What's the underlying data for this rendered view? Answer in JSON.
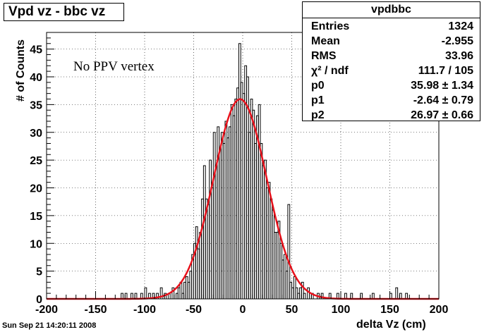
{
  "title": "Vpd vz - bbc vz",
  "annotation": "No PPV vertex",
  "timestamp": "Sun Sep 21 14:20:11 2008",
  "stats": {
    "name": "vpdbbc",
    "rows": [
      {
        "label": "Entries",
        "value": "1324"
      },
      {
        "label": "Mean",
        "value": "-2.955"
      },
      {
        "label": "RMS",
        "value": "33.96"
      },
      {
        "label": "χ² / ndf",
        "value": "111.7 / 105"
      },
      {
        "label": "p0",
        "value": "35.98 ± 1.34"
      },
      {
        "label": "p1",
        "value": "-2.64 ± 0.79"
      },
      {
        "label": "p2",
        "value": "26.97 ± 0.66"
      }
    ]
  },
  "colors": {
    "histogram": "#000000",
    "fit": "#e8121c",
    "grid": "#000000"
  },
  "chart_data": {
    "type": "bar",
    "xlabel": "delta Vz (cm)",
    "ylabel": "# of Counts",
    "xlim": [
      -200,
      200
    ],
    "ylim": [
      0,
      48
    ],
    "xticks": [
      -200,
      -150,
      -100,
      -50,
      0,
      50,
      100,
      150,
      200
    ],
    "yticks": [
      0,
      5,
      10,
      15,
      20,
      25,
      30,
      35,
      40,
      45
    ],
    "grid": true,
    "bin_width": 2,
    "bins": [
      [
        -124,
        1
      ],
      [
        -120,
        1
      ],
      [
        -114,
        1
      ],
      [
        -110,
        1
      ],
      [
        -104,
        1
      ],
      [
        -100,
        2
      ],
      [
        -96,
        1
      ],
      [
        -92,
        1
      ],
      [
        -88,
        1
      ],
      [
        -84,
        2
      ],
      [
        -80,
        1
      ],
      [
        -76,
        1
      ],
      [
        -72,
        2
      ],
      [
        -68,
        1
      ],
      [
        -66,
        2
      ],
      [
        -64,
        3
      ],
      [
        -62,
        1
      ],
      [
        -60,
        3
      ],
      [
        -58,
        4
      ],
      [
        -56,
        3
      ],
      [
        -54,
        5
      ],
      [
        -52,
        8
      ],
      [
        -50,
        10
      ],
      [
        -48,
        13
      ],
      [
        -46,
        9
      ],
      [
        -44,
        12
      ],
      [
        -42,
        18
      ],
      [
        -40,
        24
      ],
      [
        -38,
        18
      ],
      [
        -36,
        17
      ],
      [
        -34,
        25
      ],
      [
        -32,
        20
      ],
      [
        -30,
        30
      ],
      [
        -28,
        24
      ],
      [
        -26,
        31
      ],
      [
        -24,
        27
      ],
      [
        -22,
        30
      ],
      [
        -20,
        28
      ],
      [
        -18,
        32
      ],
      [
        -16,
        29
      ],
      [
        -14,
        31
      ],
      [
        -12,
        35
      ],
      [
        -10,
        33
      ],
      [
        -8,
        36
      ],
      [
        -6,
        38
      ],
      [
        -4,
        46
      ],
      [
        -2,
        39
      ],
      [
        0,
        37
      ],
      [
        2,
        42
      ],
      [
        4,
        40
      ],
      [
        6,
        30
      ],
      [
        8,
        36
      ],
      [
        10,
        34
      ],
      [
        12,
        28
      ],
      [
        14,
        33
      ],
      [
        16,
        35
      ],
      [
        18,
        28
      ],
      [
        20,
        24
      ],
      [
        22,
        25
      ],
      [
        24,
        20
      ],
      [
        26,
        21
      ],
      [
        28,
        18
      ],
      [
        30,
        16
      ],
      [
        32,
        12
      ],
      [
        34,
        12
      ],
      [
        36,
        14
      ],
      [
        38,
        10
      ],
      [
        40,
        7
      ],
      [
        42,
        8
      ],
      [
        44,
        5
      ],
      [
        46,
        17
      ],
      [
        48,
        3
      ],
      [
        50,
        2
      ],
      [
        52,
        4
      ],
      [
        54,
        2
      ],
      [
        56,
        1
      ],
      [
        58,
        2
      ],
      [
        60,
        3
      ],
      [
        62,
        1
      ],
      [
        66,
        2
      ],
      [
        70,
        1
      ],
      [
        76,
        1
      ],
      [
        80,
        1
      ],
      [
        88,
        1
      ],
      [
        96,
        1
      ],
      [
        104,
        1
      ],
      [
        110,
        1
      ],
      [
        120,
        1
      ],
      [
        132,
        1
      ],
      [
        150,
        1
      ],
      [
        156,
        2
      ],
      [
        160,
        1
      ],
      [
        166,
        1
      ]
    ],
    "fit": {
      "function": "gaus",
      "p0": 35.98,
      "p1": -2.64,
      "p2": 26.97
    }
  }
}
